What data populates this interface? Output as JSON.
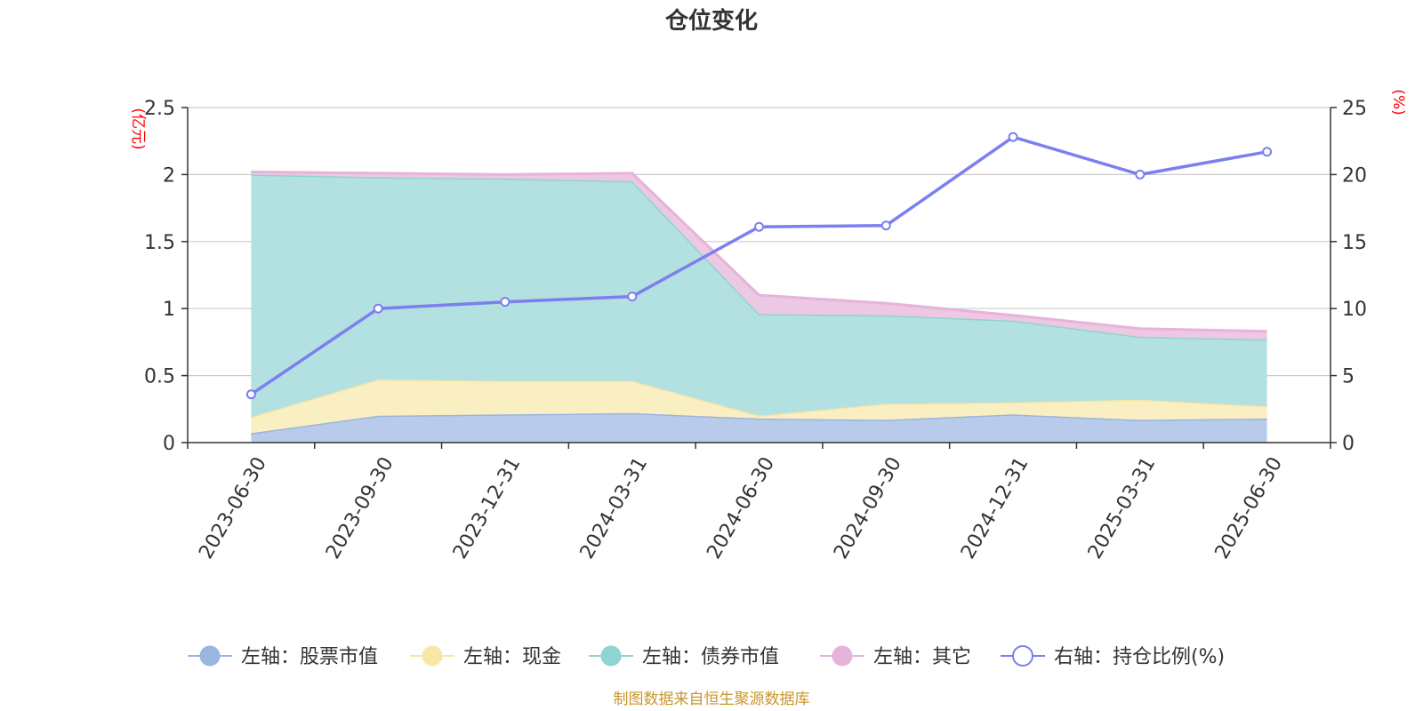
{
  "chart_data": {
    "type": "area",
    "title": "仓位变化",
    "categories": [
      "2023-06-30",
      "2023-09-30",
      "2023-12-31",
      "2024-03-31",
      "2024-06-30",
      "2024-09-30",
      "2024-12-31",
      "2025-03-31",
      "2025-06-30"
    ],
    "left_axis": {
      "unit": "(亿元)",
      "ylim": [
        0,
        2.5
      ],
      "ticks": [
        "0",
        "0.5",
        "1",
        "1.5",
        "2",
        "2.5"
      ],
      "tick_values": [
        0,
        0.5,
        1,
        1.5,
        2,
        2.5
      ]
    },
    "right_axis": {
      "unit": "(%)",
      "ylim": [
        0,
        25
      ],
      "ticks": [
        "0",
        "5",
        "10",
        "15",
        "20",
        "25"
      ],
      "tick_values": [
        0,
        5,
        10,
        15,
        20,
        25
      ]
    },
    "grid": true,
    "legend_placement": "bottom",
    "series": [
      {
        "name": "左轴：股票市值",
        "axis": "left",
        "stacked": true,
        "color": "#9ab5e0",
        "fill": "#b8cbeb",
        "values": [
          0.07,
          0.2,
          0.21,
          0.22,
          0.18,
          0.17,
          0.21,
          0.17,
          0.18
        ]
      },
      {
        "name": "左轴：现金",
        "axis": "left",
        "stacked": true,
        "color": "#f7e7a6",
        "fill": "#faefc2",
        "values": [
          0.12,
          0.27,
          0.25,
          0.24,
          0.02,
          0.12,
          0.09,
          0.15,
          0.09
        ]
      },
      {
        "name": "左轴：债券市值",
        "axis": "left",
        "stacked": true,
        "color": "#8fd3d3",
        "fill": "#b3e0e0",
        "values": [
          1.81,
          1.51,
          1.51,
          1.49,
          0.76,
          0.66,
          0.61,
          0.47,
          0.5
        ]
      },
      {
        "name": "左轴：其它",
        "axis": "left",
        "stacked": true,
        "color": "#e6b3d9",
        "fill": "#edc8e3",
        "values": [
          0.02,
          0.03,
          0.03,
          0.06,
          0.14,
          0.09,
          0.04,
          0.06,
          0.06
        ]
      },
      {
        "name": "右轴：持仓比例(%)",
        "axis": "right",
        "type": "line",
        "color": "#7b7ff0",
        "values": [
          3.6,
          10.0,
          10.5,
          10.9,
          16.1,
          16.2,
          22.8,
          20.0,
          21.7
        ]
      }
    ],
    "source_note": "制图数据来自恒生聚源数据库"
  }
}
